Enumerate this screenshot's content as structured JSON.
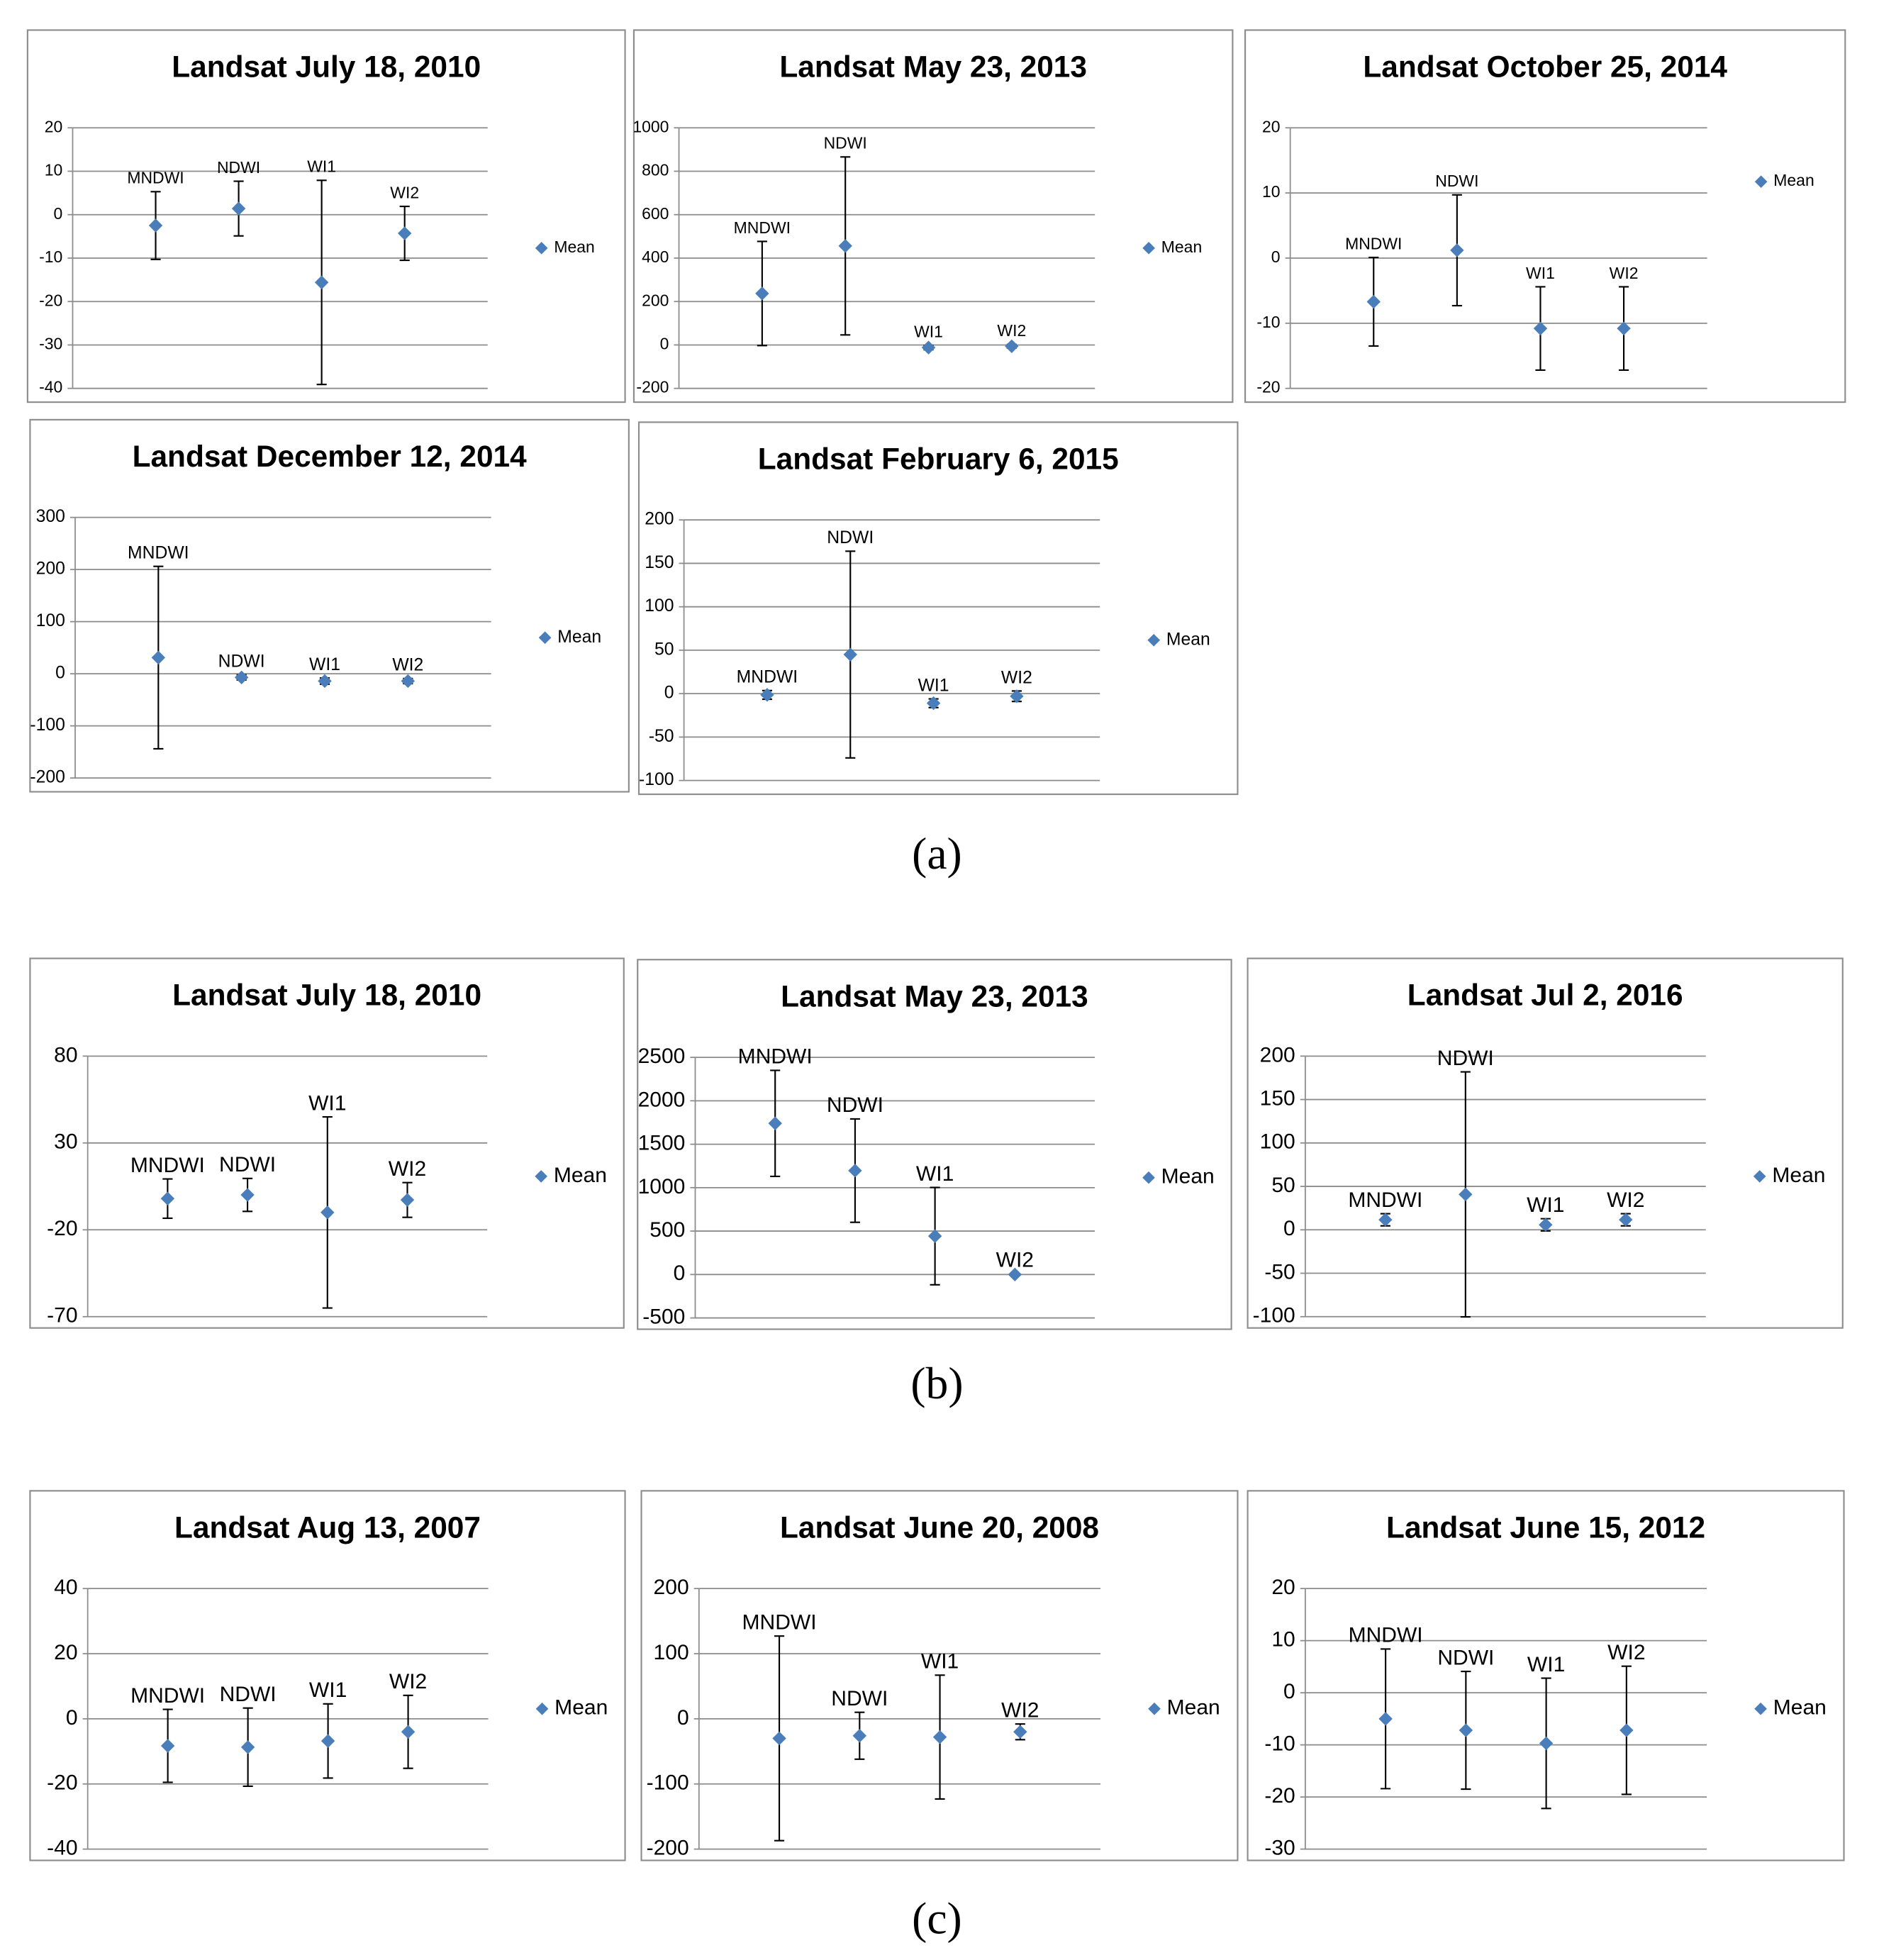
{
  "chart_data": [
    {
      "type": "errorbar",
      "title": "Landsat July 18, 2010",
      "categories": [
        "MNDWI",
        "NDWI",
        "WI1",
        "WI2"
      ],
      "series": [
        {
          "name": "Mean",
          "color": "#4a7ebb",
          "values": [
            -2.5,
            1.4,
            -15.6,
            -4.3
          ],
          "errors": [
            7.8,
            6.3,
            23.5,
            6.2
          ]
        }
      ],
      "ylim": [
        -40,
        20
      ],
      "yticks": [
        -40,
        -30,
        -20,
        -10,
        0,
        10,
        20
      ],
      "grid": true,
      "legend": "right"
    },
    {
      "type": "errorbar",
      "title": "Landsat May 23, 2013",
      "categories": [
        "MNDWI",
        "NDWI",
        "WI1",
        "WI2"
      ],
      "series": [
        {
          "name": "Mean",
          "color": "#4a7ebb",
          "values": [
            237,
            456,
            -12,
            -6
          ],
          "errors": [
            240,
            410,
            10,
            8
          ]
        }
      ],
      "ylim": [
        -200,
        1000
      ],
      "yticks": [
        -200,
        0,
        200,
        400,
        600,
        800,
        1000
      ],
      "grid": true,
      "legend": "right"
    },
    {
      "type": "errorbar",
      "title": "Landsat October 25, 2014",
      "categories": [
        "MNDWI",
        "NDWI",
        "WI1",
        "WI2"
      ],
      "series": [
        {
          "name": "Mean",
          "color": "#4a7ebb",
          "values": [
            -6.7,
            1.2,
            -10.8,
            -10.8
          ],
          "errors": [
            6.8,
            8.5,
            6.4,
            6.4
          ]
        }
      ],
      "ylim": [
        -20,
        20
      ],
      "yticks": [
        -20,
        -10,
        0,
        10,
        20
      ],
      "grid": true,
      "legend": "upper right"
    },
    {
      "type": "errorbar",
      "title": "Landsat December 12, 2014",
      "categories": [
        "MNDWI",
        "NDWI",
        "WI1",
        "WI2"
      ],
      "series": [
        {
          "name": "Mean",
          "color": "#4a7ebb",
          "values": [
            31,
            -7,
            -14,
            -14
          ],
          "errors": [
            175,
            5,
            6,
            5
          ]
        }
      ],
      "ylim": [
        -200,
        300
      ],
      "yticks": [
        -200,
        -100,
        0,
        100,
        200,
        300
      ],
      "grid": true,
      "legend": "right"
    },
    {
      "type": "errorbar",
      "title": "Landsat February 6, 2015",
      "categories": [
        "MNDWI",
        "NDWI",
        "WI1",
        "WI2"
      ],
      "series": [
        {
          "name": "Mean",
          "color": "#4a7ebb",
          "values": [
            -1.4,
            45,
            -11,
            -3
          ],
          "errors": [
            5,
            119,
            5,
            6
          ]
        }
      ],
      "ylim": [
        -100,
        200
      ],
      "yticks": [
        -100,
        -50,
        0,
        50,
        100,
        150,
        200
      ],
      "grid": true,
      "legend": "right"
    },
    {
      "type": "errorbar",
      "title": "Landsat July 18, 2010",
      "categories": [
        "MNDWI",
        "NDWI",
        "WI1",
        "WI2"
      ],
      "series": [
        {
          "name": "Mean",
          "color": "#4a7ebb",
          "values": [
            -2,
            0.1,
            -10,
            -2.8
          ],
          "errors": [
            11.3,
            9.5,
            55,
            10
          ]
        }
      ],
      "ylim": [
        -70,
        80
      ],
      "yticks": [
        -70,
        -20,
        30,
        80
      ],
      "grid": true,
      "legend": "right"
    },
    {
      "type": "errorbar",
      "title": "Landsat May 23, 2013",
      "categories": [
        "MNDWI",
        "NDWI",
        "WI1",
        "WI2"
      ],
      "series": [
        {
          "name": "Mean",
          "color": "#4a7ebb",
          "values": [
            1740,
            1196,
            442,
            0
          ],
          "errors": [
            610,
            595,
            560,
            10
          ]
        }
      ],
      "ylim": [
        -500,
        2500
      ],
      "yticks": [
        -500,
        0,
        500,
        1000,
        1500,
        2000,
        2500
      ],
      "grid": true,
      "legend": "right"
    },
    {
      "type": "errorbar",
      "title": "Landsat Jul 2, 2016",
      "categories": [
        "MNDWI",
        "NDWI",
        "WI1",
        "WI2"
      ],
      "series": [
        {
          "name": "Mean",
          "color": "#4a7ebb",
          "values": [
            11.6,
            40.8,
            5.8,
            11.6
          ],
          "errors": [
            7,
            141,
            7,
            7
          ]
        }
      ],
      "ylim": [
        -100,
        200
      ],
      "yticks": [
        -100,
        -50,
        0,
        50,
        100,
        150,
        200
      ],
      "grid": true,
      "legend": "right"
    },
    {
      "type": "errorbar",
      "title": "Landsat Aug 13, 2007",
      "categories": [
        "MNDWI",
        "NDWI",
        "WI1",
        "WI2"
      ],
      "series": [
        {
          "name": "Mean",
          "color": "#4a7ebb",
          "values": [
            -8.3,
            -8.7,
            -6.8,
            -4
          ],
          "errors": [
            11.2,
            12,
            11.4,
            11.2
          ]
        }
      ],
      "ylim": [
        -40,
        40
      ],
      "yticks": [
        -40,
        -20,
        0,
        20,
        40
      ],
      "grid": true,
      "legend": "right"
    },
    {
      "type": "errorbar",
      "title": "Landsat June 20, 2008",
      "categories": [
        "MNDWI",
        "NDWI",
        "WI1",
        "WI2"
      ],
      "series": [
        {
          "name": "Mean",
          "color": "#4a7ebb",
          "values": [
            -30,
            -26,
            -28,
            -20
          ],
          "errors": [
            157,
            36,
            95,
            12
          ]
        }
      ],
      "ylim": [
        -200,
        200
      ],
      "yticks": [
        -200,
        -100,
        0,
        100,
        200
      ],
      "grid": true,
      "legend": "right"
    },
    {
      "type": "errorbar",
      "title": "Landsat June 15, 2012",
      "categories": [
        "MNDWI",
        "NDWI",
        "WI1",
        "WI2"
      ],
      "series": [
        {
          "name": "Mean",
          "color": "#4a7ebb",
          "values": [
            -5,
            -7.2,
            -9.7,
            -7.2
          ],
          "errors": [
            13.4,
            11.3,
            12.5,
            12.3
          ]
        }
      ],
      "ylim": [
        -30,
        20
      ],
      "yticks": [
        -30,
        -20,
        -10,
        0,
        10,
        20
      ],
      "grid": true,
      "legend": "right"
    }
  ],
  "panel_labels": [
    "(a)",
    "(b)",
    "(c)"
  ]
}
